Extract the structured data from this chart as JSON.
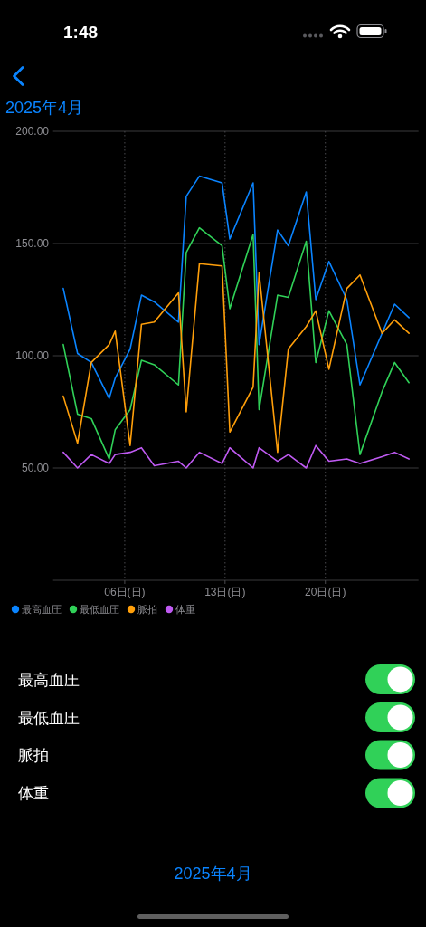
{
  "chart_data": [
    {
      "type": "line",
      "title": "2025年4月",
      "annotations": [
        "1:48",
        "2025年4月"
      ],
      "x": [
        "2025-04-01T17:00",
        "2025-04-02T17:00",
        "2025-04-03T16:00",
        "2025-04-04T22:00",
        "2025-04-05T08:00",
        "2025-04-06T09:00",
        "2025-04-07T04:00",
        "2025-04-08T01:30",
        "2025-04-09T18:00",
        "2025-04-10T07:00",
        "2025-04-11T05:00",
        "2025-04-12T19:00",
        "2025-04-13T08:00",
        "2025-04-14T23:00",
        "2025-04-15T09:00",
        "2025-04-16T16:00",
        "2025-04-17T10:00",
        "2025-04-18T16:00",
        "2025-04-19T08:00",
        "2025-04-20T06:00",
        "2025-04-21T12:00",
        "2025-04-22T10:00",
        "2025-04-23T23:00",
        "2025-04-24T20:00",
        "2025-04-25T20:00"
      ],
      "xlim": [
        "2025-04-01",
        "2025-04-26T12:00"
      ],
      "xticks": [
        {
          "value": "2025-04-06",
          "label": "06日(日)"
        },
        {
          "value": "2025-04-13",
          "label": "13日(日)"
        },
        {
          "value": "2025-04-20",
          "label": "20日(日)"
        }
      ],
      "ylim": [
        0,
        200
      ],
      "yticks": [
        {
          "value": 0,
          "label": null
        },
        {
          "value": 50,
          "label": "50.00"
        },
        {
          "value": 100,
          "label": "100.00"
        },
        {
          "value": 150,
          "label": "150.00"
        },
        {
          "value": 200,
          "label": "200.00"
        }
      ],
      "grid": true,
      "legend": "bottom left",
      "series": [
        {
          "name": "最高血圧",
          "color": "#0a84ff",
          "values": [
            130,
            101,
            97,
            81,
            90,
            103,
            127,
            124,
            115,
            171,
            180,
            177,
            152,
            177,
            105,
            156,
            149,
            173,
            125,
            142,
            125,
            87,
            110,
            123,
            117
          ]
        },
        {
          "name": "最低血圧",
          "color": "#30d158",
          "values": [
            105,
            74,
            72,
            54,
            67,
            76,
            98,
            96,
            87,
            146,
            157,
            149,
            121,
            154,
            76,
            127,
            126,
            151,
            97,
            120,
            105,
            56,
            84,
            97,
            88
          ]
        },
        {
          "name": "脈拍",
          "color": "#ff9f0a",
          "values": [
            82,
            61,
            97,
            105,
            111,
            60,
            114,
            115,
            128,
            75,
            141,
            140,
            66,
            86,
            137,
            57,
            103,
            113,
            120,
            94,
            130,
            136,
            110,
            116,
            110
          ]
        },
        {
          "name": "体重",
          "color": "#bf5af2",
          "values": [
            57,
            50,
            56,
            52,
            56,
            57,
            59,
            51,
            53,
            50,
            57,
            52,
            59,
            50,
            59,
            53,
            56,
            50,
            60,
            53,
            54,
            52,
            55,
            57,
            54
          ]
        }
      ]
    },
    {
      "type": "other",
      "annotations": [
        "最高血圧",
        "最低血圧",
        "脈拍",
        "体重"
      ]
    }
  ]
}
